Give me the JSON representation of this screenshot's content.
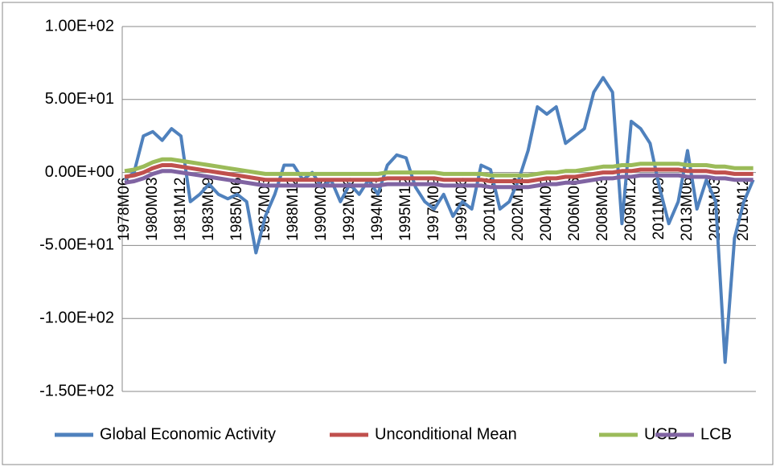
{
  "chart_data": {
    "type": "line",
    "categories": [
      "1978M06",
      null,
      null,
      "1980M03",
      null,
      null,
      "1981M12",
      null,
      null,
      "1983M09",
      null,
      null,
      "1985M06",
      null,
      null,
      "1987M03",
      null,
      null,
      "1988M12",
      null,
      null,
      "1990M09",
      null,
      null,
      "1992M06",
      null,
      null,
      "1994M03",
      null,
      null,
      "1995M12",
      null,
      null,
      "1997M09",
      null,
      null,
      "1999M06",
      null,
      null,
      "2001M03",
      null,
      null,
      "2002M12",
      null,
      null,
      "2004M09",
      null,
      null,
      "2006M06",
      null,
      null,
      "2008M03",
      null,
      null,
      "2009M12",
      null,
      null,
      "2011M09",
      null,
      null,
      "2013M06",
      null,
      null,
      "2015M03",
      null,
      null,
      "2016M12",
      null
    ],
    "series": [
      {
        "name": "Global Economic Activity",
        "color": "#4f81bd",
        "values": [
          -5,
          0,
          25,
          28,
          22,
          30,
          25,
          -20,
          -15,
          -8,
          -15,
          -18,
          -15,
          -20,
          -55,
          -30,
          -15,
          5,
          5,
          -5,
          0,
          -10,
          -5,
          -20,
          -8,
          -15,
          -5,
          -15,
          5,
          12,
          10,
          -10,
          -20,
          -25,
          -15,
          -30,
          -20,
          -25,
          5,
          2,
          -25,
          -20,
          -5,
          15,
          45,
          40,
          45,
          20,
          25,
          30,
          55,
          65,
          55,
          -35,
          35,
          30,
          20,
          -10,
          -35,
          -20,
          15,
          -25,
          -5,
          -20,
          -130,
          -45,
          -20,
          -5
        ]
      },
      {
        "name": "Unconditional Mean",
        "color": "#c0504d",
        "values": [
          -3,
          -2,
          0,
          3,
          5,
          5,
          4,
          3,
          2,
          1,
          0,
          -1,
          -2,
          -3,
          -4,
          -5,
          -5,
          -5,
          -5,
          -5,
          -5,
          -5,
          -5,
          -5,
          -5,
          -5,
          -5,
          -5,
          -4,
          -4,
          -4,
          -4,
          -4,
          -4,
          -5,
          -5,
          -5,
          -5,
          -5,
          -6,
          -6,
          -6,
          -6,
          -6,
          -5,
          -4,
          -4,
          -3,
          -3,
          -2,
          -1,
          0,
          0,
          1,
          1,
          2,
          2,
          2,
          2,
          2,
          1,
          1,
          1,
          0,
          0,
          -1,
          -1,
          -1
        ]
      },
      {
        "name": "UCB",
        "color": "#9bbb59",
        "values": [
          1,
          2,
          4,
          7,
          9,
          9,
          8,
          7,
          6,
          5,
          4,
          3,
          2,
          1,
          0,
          -1,
          -1,
          -1,
          -1,
          -1,
          -1,
          -1,
          -1,
          -1,
          -1,
          -1,
          -1,
          -1,
          0,
          0,
          0,
          0,
          0,
          0,
          -1,
          -1,
          -1,
          -1,
          -1,
          -2,
          -2,
          -2,
          -2,
          -2,
          -1,
          0,
          0,
          1,
          1,
          2,
          3,
          4,
          4,
          5,
          5,
          6,
          6,
          6,
          6,
          6,
          5,
          5,
          5,
          4,
          4,
          3,
          3,
          3
        ]
      },
      {
        "name": "LCB",
        "color": "#8064a2",
        "values": [
          -7,
          -6,
          -4,
          -1,
          1,
          1,
          0,
          -1,
          -2,
          -3,
          -4,
          -5,
          -6,
          -7,
          -8,
          -9,
          -9,
          -9,
          -9,
          -9,
          -9,
          -9,
          -9,
          -9,
          -9,
          -9,
          -9,
          -9,
          -8,
          -8,
          -8,
          -8,
          -8,
          -8,
          -9,
          -9,
          -9,
          -9,
          -9,
          -10,
          -10,
          -10,
          -10,
          -10,
          -9,
          -8,
          -8,
          -7,
          -7,
          -6,
          -5,
          -4,
          -4,
          -3,
          -3,
          -2,
          -2,
          -2,
          -2,
          -2,
          -3,
          -3,
          -3,
          -4,
          -4,
          -5,
          -5,
          -5
        ]
      }
    ],
    "ylim": [
      -150,
      100
    ],
    "yticks": [
      {
        "value": 100,
        "label": "1.00E+02"
      },
      {
        "value": 50,
        "label": "5.00E+01"
      },
      {
        "value": 0,
        "label": "0.00E+00"
      },
      {
        "value": -50,
        "label": "-5.00E+01"
      },
      {
        "value": -100,
        "label": "-1.00E+02"
      },
      {
        "value": -150,
        "label": "-1.50E+02"
      }
    ],
    "grid": true,
    "legend": "bottom"
  }
}
